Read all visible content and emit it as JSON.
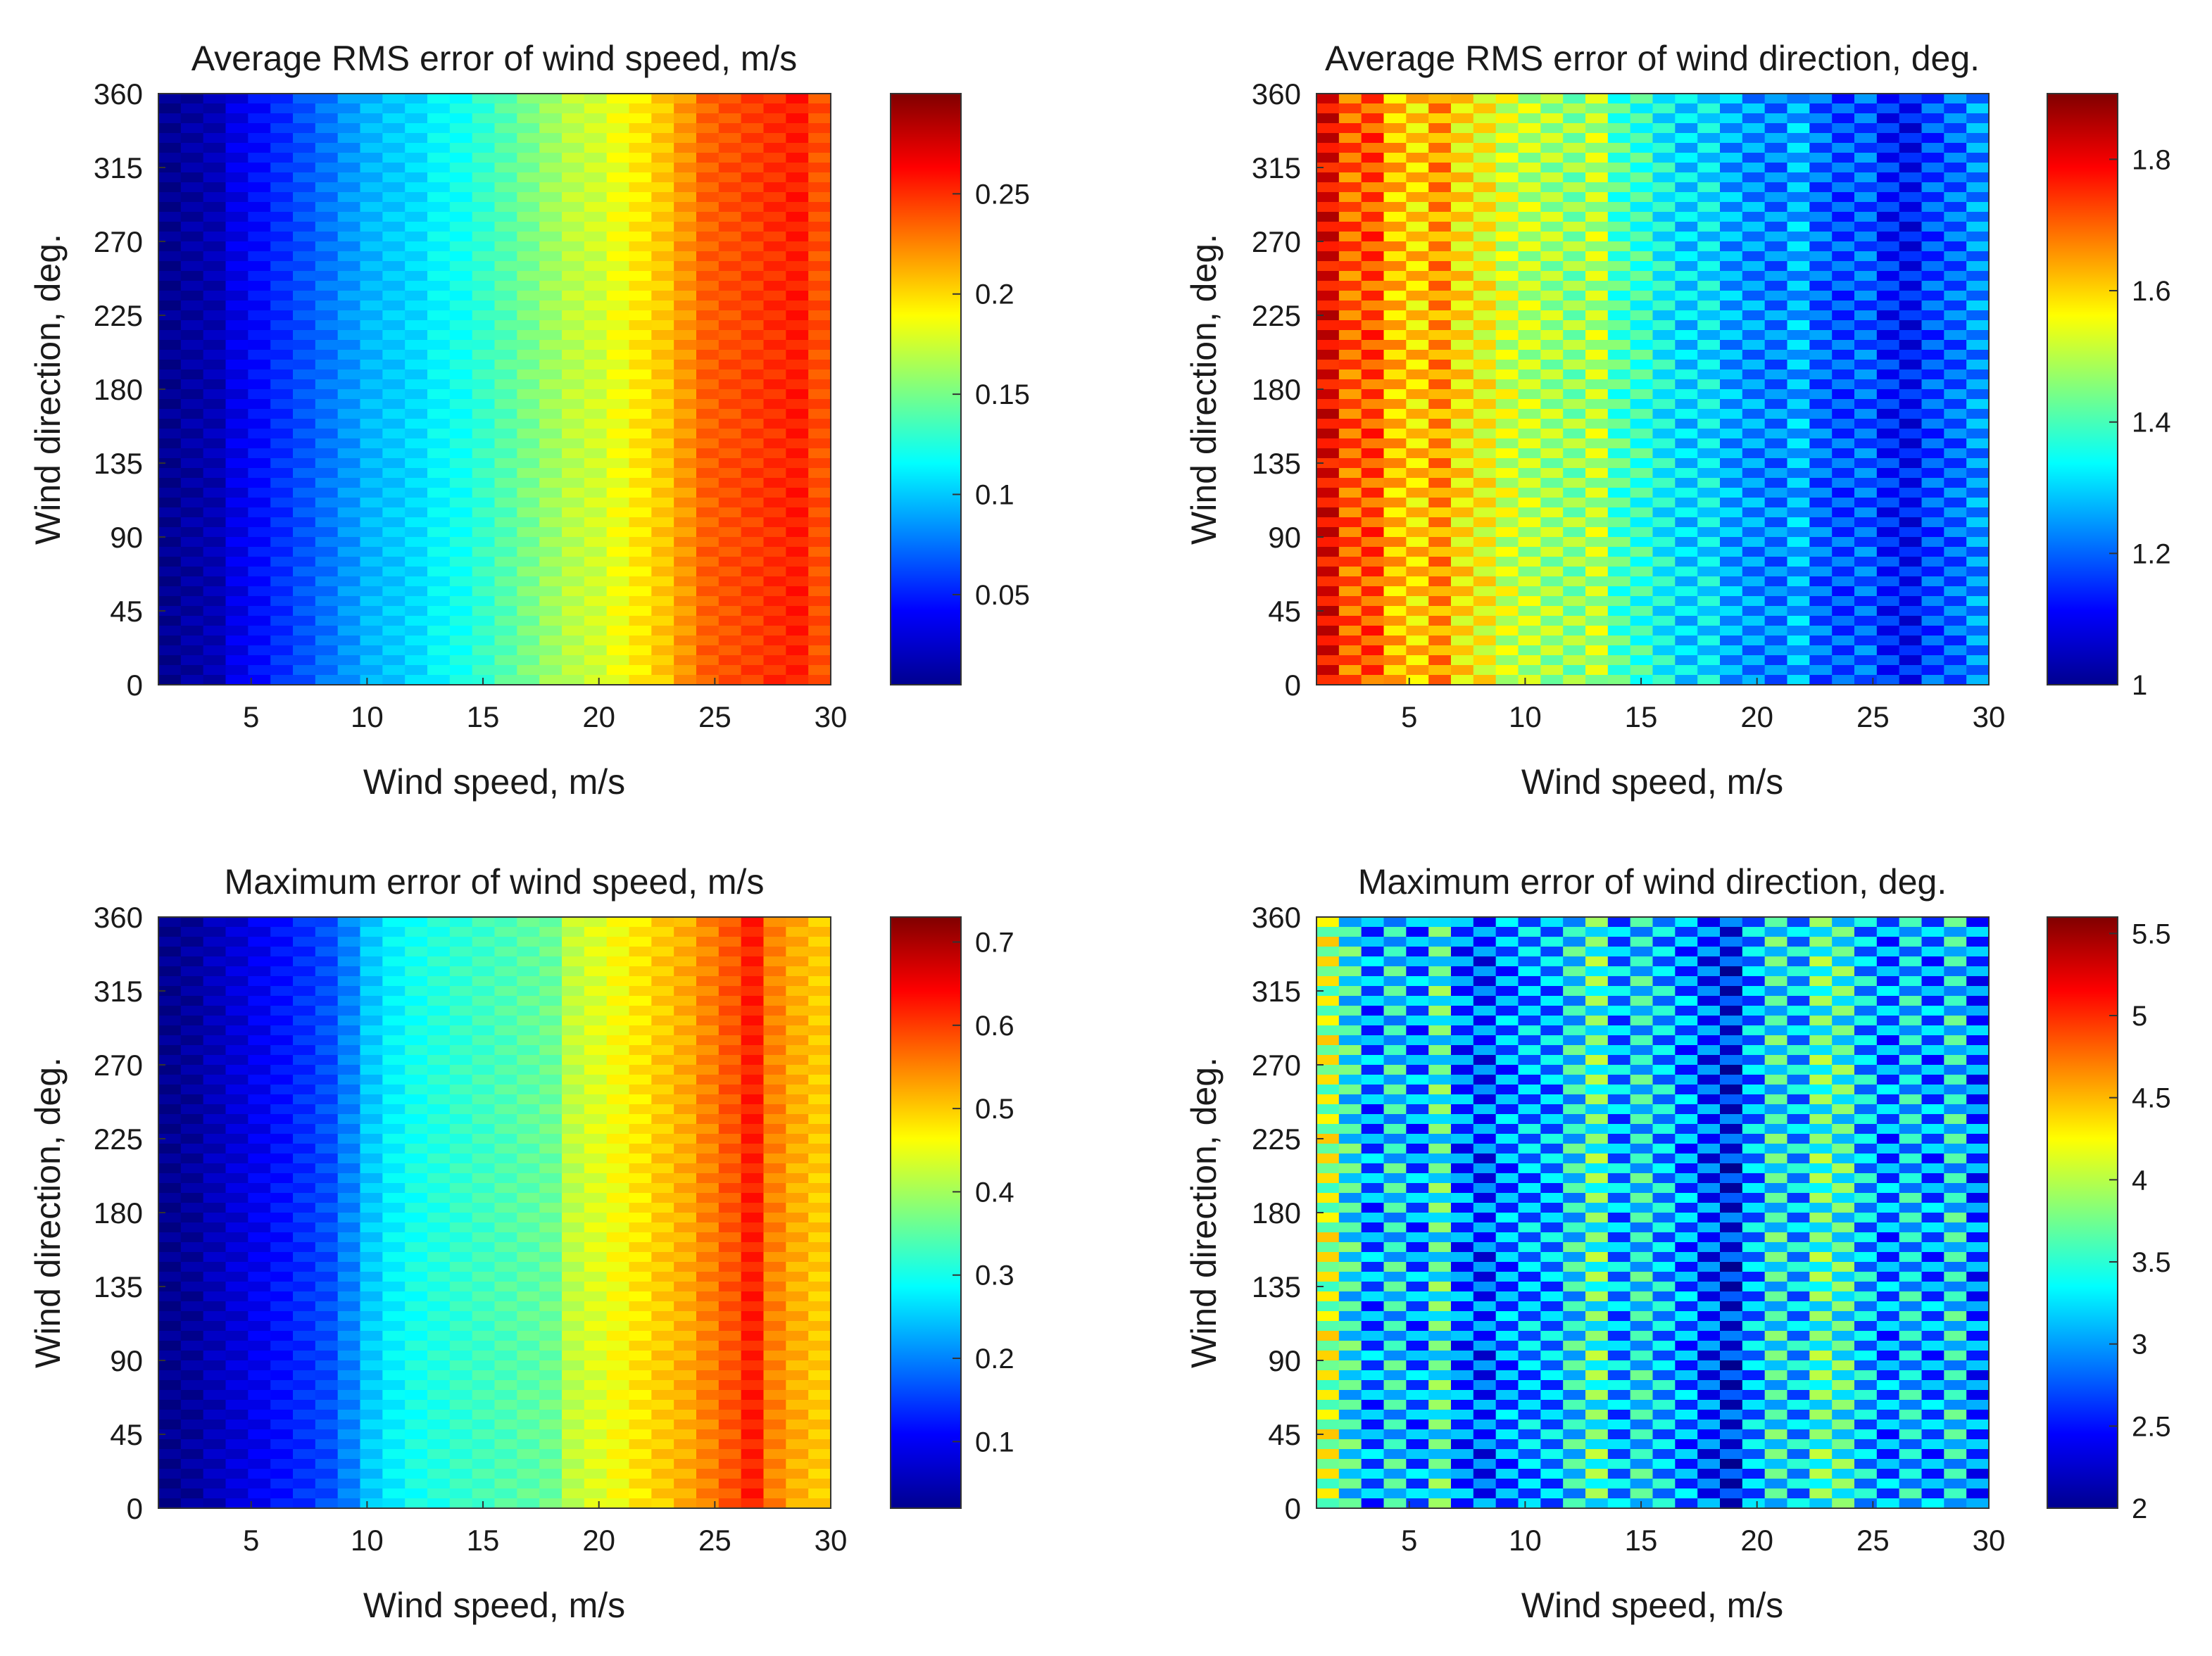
{
  "chart_data": [
    {
      "type": "heatmap",
      "title": "Average RMS error of wind speed, m/s",
      "xlabel": "Wind speed, m/s",
      "ylabel": "Wind direction, deg.",
      "xlim": [
        1,
        30
      ],
      "ylim": [
        0,
        360
      ],
      "xticks": [
        5,
        10,
        15,
        20,
        25,
        30
      ],
      "yticks": [
        0,
        45,
        90,
        135,
        180,
        225,
        270,
        315,
        360
      ],
      "colorbar": {
        "min": 0.005,
        "max": 0.3,
        "ticks": [
          0.05,
          0.1,
          0.15,
          0.2,
          0.25
        ]
      },
      "column_values": [
        0.01,
        0.015,
        0.02,
        0.035,
        0.045,
        0.055,
        0.065,
        0.075,
        0.085,
        0.095,
        0.1,
        0.105,
        0.115,
        0.12,
        0.13,
        0.14,
        0.15,
        0.16,
        0.17,
        0.175,
        0.185,
        0.195,
        0.205,
        0.22,
        0.235,
        0.24,
        0.245,
        0.25,
        0.255,
        0.24
      ],
      "stripe_jitter": 0.006
    },
    {
      "type": "heatmap",
      "title": "Average RMS error of wind direction, deg.",
      "xlabel": "Wind speed, m/s",
      "ylabel": "Wind direction, deg.",
      "xlim": [
        1,
        30
      ],
      "ylim": [
        0,
        360
      ],
      "xticks": [
        5,
        10,
        15,
        20,
        25,
        30
      ],
      "yticks": [
        0,
        45,
        90,
        135,
        180,
        225,
        270,
        315,
        360
      ],
      "colorbar": {
        "min": 1.0,
        "max": 1.9,
        "ticks": [
          1,
          1.2,
          1.4,
          1.6,
          1.8
        ]
      },
      "column_values": [
        1.8,
        1.7,
        1.72,
        1.62,
        1.6,
        1.66,
        1.58,
        1.56,
        1.52,
        1.5,
        1.48,
        1.46,
        1.5,
        1.4,
        1.38,
        1.34,
        1.3,
        1.32,
        1.26,
        1.24,
        1.22,
        1.27,
        1.2,
        1.18,
        1.2,
        1.14,
        1.12,
        1.18,
        1.2,
        1.24
      ],
      "stripe_jitter": 0.06
    },
    {
      "type": "heatmap",
      "title": "Maximum error of wind speed, m/s",
      "xlabel": "Wind speed, m/s",
      "ylabel": "Wind direction, deg.",
      "xlim": [
        1,
        30
      ],
      "ylim": [
        0,
        360
      ],
      "xticks": [
        5,
        10,
        15,
        20,
        25,
        30
      ],
      "yticks": [
        0,
        45,
        90,
        135,
        180,
        225,
        270,
        315,
        360
      ],
      "colorbar": {
        "min": 0.02,
        "max": 0.73,
        "ticks": [
          0.1,
          0.2,
          0.3,
          0.4,
          0.5,
          0.6,
          0.7
        ]
      },
      "column_values": [
        0.03,
        0.04,
        0.06,
        0.08,
        0.1,
        0.12,
        0.14,
        0.16,
        0.2,
        0.25,
        0.28,
        0.3,
        0.31,
        0.32,
        0.33,
        0.34,
        0.35,
        0.36,
        0.42,
        0.44,
        0.46,
        0.48,
        0.5,
        0.52,
        0.55,
        0.58,
        0.62,
        0.55,
        0.52,
        0.5
      ],
      "stripe_jitter": 0.015
    },
    {
      "type": "heatmap",
      "title": "Maximum error of wind direction, deg.",
      "xlabel": "Wind speed, m/s",
      "ylabel": "Wind direction, deg.",
      "xlim": [
        1,
        30
      ],
      "ylim": [
        0,
        360
      ],
      "xticks": [
        5,
        10,
        15,
        20,
        25,
        30
      ],
      "yticks": [
        0,
        45,
        90,
        135,
        180,
        225,
        270,
        315,
        360
      ],
      "colorbar": {
        "min": 2.0,
        "max": 5.6,
        "ticks": [
          2,
          2.5,
          3,
          3.5,
          4,
          4.5,
          5,
          5.5
        ]
      },
      "column_values": [
        4.0,
        3.4,
        2.9,
        3.3,
        2.9,
        3.5,
        2.8,
        2.7,
        2.9,
        3.0,
        3.0,
        3.3,
        3.6,
        3.0,
        3.3,
        3.1,
        2.9,
        2.7,
        2.5,
        3.0,
        3.4,
        3.1,
        3.6,
        3.5,
        3.1,
        2.9,
        3.2,
        2.9,
        3.3,
        2.8
      ],
      "stripe_jitter": 0.45
    }
  ]
}
